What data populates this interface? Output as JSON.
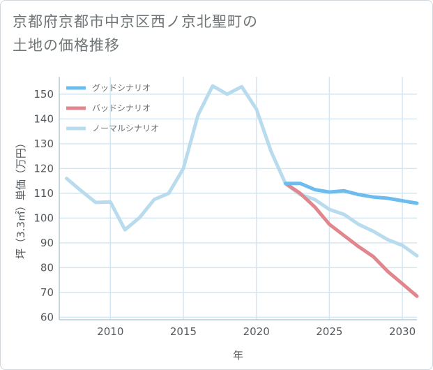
{
  "title_line1": "京都府京都市中京区西ノ京北聖町の",
  "title_line2": "土地の価格推移",
  "chart_data": {
    "type": "line",
    "xlabel": "年",
    "ylabel": "坪（3.3㎡）単価（万円）",
    "xlim": [
      2006.5,
      2031
    ],
    "ylim": [
      59,
      157
    ],
    "x_ticks": [
      2010,
      2015,
      2020,
      2025,
      2030
    ],
    "y_ticks": [
      60,
      70,
      80,
      90,
      100,
      110,
      120,
      130,
      140,
      150
    ],
    "grid": true,
    "legend_position": "top-left",
    "series": [
      {
        "name": "グッドシナリオ",
        "color": "#6cbcee",
        "x": [
          2022,
          2023,
          2024,
          2025,
          2026,
          2027,
          2028,
          2029,
          2030,
          2031
        ],
        "y": [
          114,
          114,
          111.5,
          110.5,
          111,
          109.5,
          108.5,
          108,
          107,
          106
        ]
      },
      {
        "name": "バッドシナリオ",
        "color": "#e0868c",
        "x": [
          2022,
          2023,
          2024,
          2025,
          2026,
          2027,
          2028,
          2029,
          2030,
          2031
        ],
        "y": [
          114,
          110,
          104.5,
          97.5,
          93,
          88.5,
          84.5,
          78.5,
          73.5,
          68.5
        ]
      },
      {
        "name": "ノーマルシナリオ",
        "color": "#b8dced",
        "x": [
          2007,
          2008,
          2009,
          2010,
          2011,
          2012,
          2013,
          2014,
          2015,
          2016,
          2017,
          2018,
          2019,
          2020,
          2021,
          2022,
          2023,
          2024,
          2025,
          2026,
          2027,
          2028,
          2029,
          2030,
          2031
        ],
        "y": [
          116,
          111,
          106.3,
          106.5,
          95.3,
          100.2,
          107.5,
          110,
          120,
          141.5,
          153.3,
          150,
          153,
          144,
          127,
          113.8,
          109.5,
          107.5,
          103.5,
          101.5,
          97.5,
          94.7,
          91.3,
          89,
          84.8
        ]
      }
    ]
  }
}
